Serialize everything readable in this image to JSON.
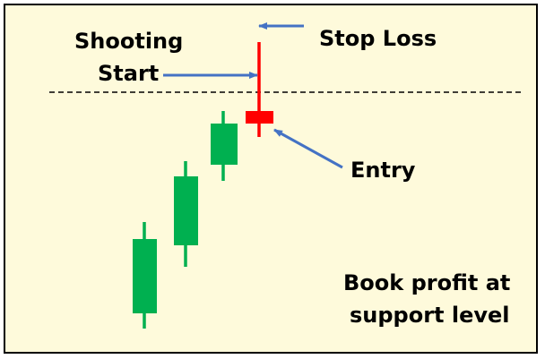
{
  "labels": {
    "shooting_star_line1": "Shooting",
    "shooting_star_line2": "Start",
    "stop_loss": "Stop Loss",
    "entry": "Entry",
    "book_profit_line1": "Book profit at",
    "book_profit_line2": "support level"
  },
  "colors": {
    "background": "#fefadb",
    "bullish": "#00b050",
    "bearish": "#ff0000",
    "arrow": "#4472c4",
    "dashed_line": "#000000"
  }
}
